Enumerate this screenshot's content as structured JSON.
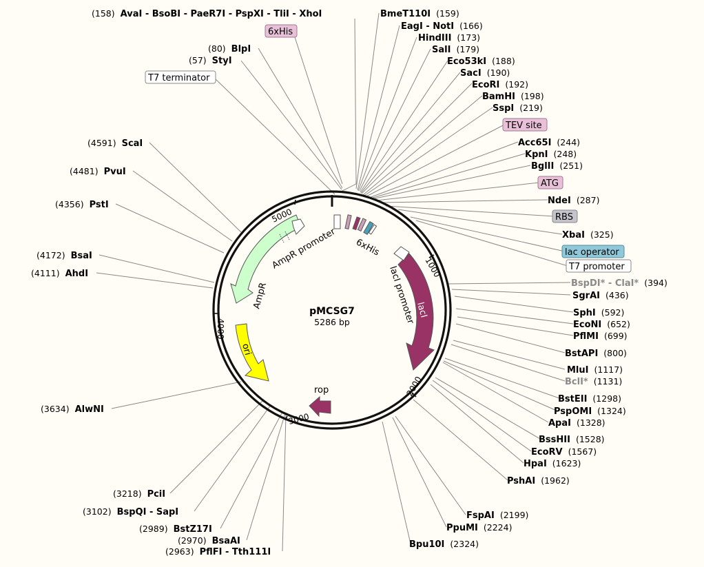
{
  "plasmid": {
    "name": "pMCSG7",
    "size_label": "5286 bp",
    "length_bp": 5286
  },
  "ticks": [
    "1000",
    "2000",
    "3000",
    "4000",
    "5000"
  ],
  "feature_labels": {
    "ampr": "AmpR",
    "ampr_promoter": "AmpR promoter",
    "ori": "ori",
    "laci": "lacI",
    "laci_promoter": "lacI promoter",
    "rop": "rop",
    "sixhis": "6xHis"
  },
  "feature_tags": {
    "sixhis_top": "6xHis",
    "t7_terminator": "T7 terminator",
    "tev_site": "TEV site",
    "atg": "ATG",
    "rbs": "RBS",
    "lac_operator": "lac operator",
    "t7_promoter": "T7 promoter"
  },
  "restriction_sites": [
    {
      "name": "AvaI - BsoBI - PaeR7I - PspXI - TliI - XhoI",
      "pos": "(158)",
      "dim": false
    },
    {
      "name": "BlpI",
      "pos": "(80)",
      "dim": false
    },
    {
      "name": "StyI",
      "pos": "(57)",
      "dim": false
    },
    {
      "name": "ScaI",
      "pos": "(4591)",
      "dim": false
    },
    {
      "name": "PvuI",
      "pos": "(4481)",
      "dim": false
    },
    {
      "name": "PstI",
      "pos": "(4356)",
      "dim": false
    },
    {
      "name": "BsaI",
      "pos": "(4172)",
      "dim": false
    },
    {
      "name": "AhdI",
      "pos": "(4111)",
      "dim": false
    },
    {
      "name": "AlwNI",
      "pos": "(3634)",
      "dim": false
    },
    {
      "name": "PciI",
      "pos": "(3218)",
      "dim": false
    },
    {
      "name": "BspQI - SapI",
      "pos": "(3102)",
      "dim": false
    },
    {
      "name": "BstZ17I",
      "pos": "(2989)",
      "dim": false
    },
    {
      "name": "BsaAI",
      "pos": "(2970)",
      "dim": false
    },
    {
      "name": "PflFI - Tth111I",
      "pos": "(2963)",
      "dim": false
    },
    {
      "name": "BmeT110I",
      "pos": "(159)",
      "dim": false
    },
    {
      "name": "EagI - NotI",
      "pos": "(166)",
      "dim": false
    },
    {
      "name": "HindIII",
      "pos": "(173)",
      "dim": false
    },
    {
      "name": "SalI",
      "pos": "(179)",
      "dim": false
    },
    {
      "name": "Eco53kI",
      "pos": "(188)",
      "dim": false
    },
    {
      "name": "SacI",
      "pos": "(190)",
      "dim": false
    },
    {
      "name": "EcoRI",
      "pos": "(192)",
      "dim": false
    },
    {
      "name": "BamHI",
      "pos": "(198)",
      "dim": false
    },
    {
      "name": "SspI",
      "pos": "(219)",
      "dim": false
    },
    {
      "name": "Acc65I",
      "pos": "(244)",
      "dim": false
    },
    {
      "name": "KpnI",
      "pos": "(248)",
      "dim": false
    },
    {
      "name": "BglII",
      "pos": "(251)",
      "dim": false
    },
    {
      "name": "NdeI",
      "pos": "(287)",
      "dim": false
    },
    {
      "name": "XbaI",
      "pos": "(325)",
      "dim": false
    },
    {
      "name": "BspDI* - ClaI*",
      "pos": "(394)",
      "dim": true
    },
    {
      "name": "SgrAI",
      "pos": "(436)",
      "dim": false
    },
    {
      "name": "SphI",
      "pos": "(592)",
      "dim": false
    },
    {
      "name": "EcoNI",
      "pos": "(652)",
      "dim": false
    },
    {
      "name": "PflMI",
      "pos": "(699)",
      "dim": false
    },
    {
      "name": "BstAPI",
      "pos": "(800)",
      "dim": false
    },
    {
      "name": "MluI",
      "pos": "(1117)",
      "dim": false
    },
    {
      "name": "BclI*",
      "pos": "(1131)",
      "dim": true
    },
    {
      "name": "BstEII",
      "pos": "(1298)",
      "dim": false
    },
    {
      "name": "PspOMI",
      "pos": "(1324)",
      "dim": false
    },
    {
      "name": "ApaI",
      "pos": "(1328)",
      "dim": false
    },
    {
      "name": "BssHII",
      "pos": "(1528)",
      "dim": false
    },
    {
      "name": "EcoRV",
      "pos": "(1567)",
      "dim": false
    },
    {
      "name": "HpaI",
      "pos": "(1623)",
      "dim": false
    },
    {
      "name": "PshAI",
      "pos": "(1962)",
      "dim": false
    },
    {
      "name": "FspAI",
      "pos": "(2199)",
      "dim": false
    },
    {
      "name": "PpuMI",
      "pos": "(2224)",
      "dim": false
    },
    {
      "name": "Bpu10I",
      "pos": "(2324)",
      "dim": false
    }
  ],
  "colors": {
    "background": "#fffdf6",
    "ampr": "#ccffcc",
    "ori": "#ffff00",
    "laci": "#993366",
    "rop": "#993366",
    "tag_pink": "#e8c0d8",
    "tag_blue": "#8fc8d8",
    "tag_gray": "#c4c4cc",
    "tag_white": "#ffffff"
  }
}
